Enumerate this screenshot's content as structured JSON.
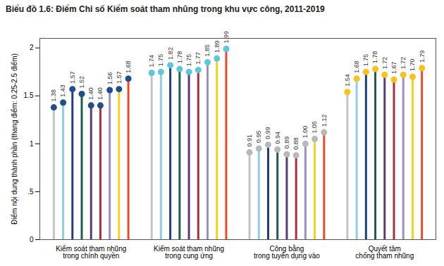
{
  "chart_data": {
    "type": "lollipop",
    "title": "Biểu đồ 1.6: Điểm Chỉ số Kiểm soát tham nhũng trong khu vực công, 2011-2019",
    "ylabel": "Điểm nội dung thành phần (thang điểm: 0.25-2.5 điểm)",
    "categories": [
      "Kiểm soát tham nhũng\ntrong chính quyền",
      "Kiểm soát tham nhũng\ntrong cung ứng",
      "Công bằng\ntrong tuyển dụng vào",
      "Quyết tâm\nchống tham nhũng"
    ],
    "colors": [
      "#1f4e8c",
      "#5cc6dc",
      "#b8b8b8",
      "#f7c21b"
    ],
    "marker": "circle",
    "data_labels": true,
    "grid": false,
    "ylim": [
      0,
      2.1
    ],
    "yticks": [
      0,
      {
        "value": 0.5,
        "label": ".5"
      },
      1,
      1.5,
      2
    ],
    "series": [
      {
        "color": "#c4c4c4",
        "values": [
          1.38,
          1.74,
          0.91,
          1.54
        ],
        "value_labels": [
          "1.38",
          "1.74",
          "0.91",
          "1.54"
        ]
      },
      {
        "color": "#8ecfe6",
        "values": [
          1.43,
          1.75,
          0.95,
          1.68
        ],
        "value_labels": [
          "1.43",
          "1.75",
          "0.95",
          "1.68"
        ]
      },
      {
        "color": "#1f3f7f",
        "values": [
          1.57,
          1.82,
          0.99,
          1.75
        ],
        "value_labels": [
          "1.57",
          "1.82",
          "0.99",
          "1.75"
        ]
      },
      {
        "color": "#205c4e",
        "values": [
          1.52,
          1.78,
          0.94,
          1.78
        ],
        "value_labels": [
          "1.52",
          "1.78",
          "0.94",
          "1.78"
        ]
      },
      {
        "color": "#5a3b7a",
        "values": [
          1.4,
          1.75,
          0.89,
          1.72
        ],
        "value_labels": [
          "1.40",
          "1.75",
          "0.89",
          "1.72"
        ]
      },
      {
        "color": "#b02e3a",
        "values": [
          1.4,
          1.77,
          0.88,
          1.67
        ],
        "value_labels": [
          "1.40",
          "1.77",
          "0.88",
          "1.67"
        ]
      },
      {
        "color": "#9b8ec4",
        "values": [
          1.56,
          1.85,
          1.0,
          1.72
        ],
        "value_labels": [
          "1.56",
          "1.85",
          "1.00",
          "1.72"
        ]
      },
      {
        "color": "#f2d21f",
        "values": [
          1.57,
          1.89,
          1.05,
          1.7
        ],
        "value_labels": [
          "1.57",
          "1.89",
          "1.05",
          "1.70"
        ]
      },
      {
        "color": "#ee4a2a",
        "values": [
          1.68,
          1.99,
          1.12,
          1.79
        ],
        "value_labels": [
          "1.68",
          "1.99",
          "1.12",
          "1.79"
        ]
      }
    ]
  }
}
